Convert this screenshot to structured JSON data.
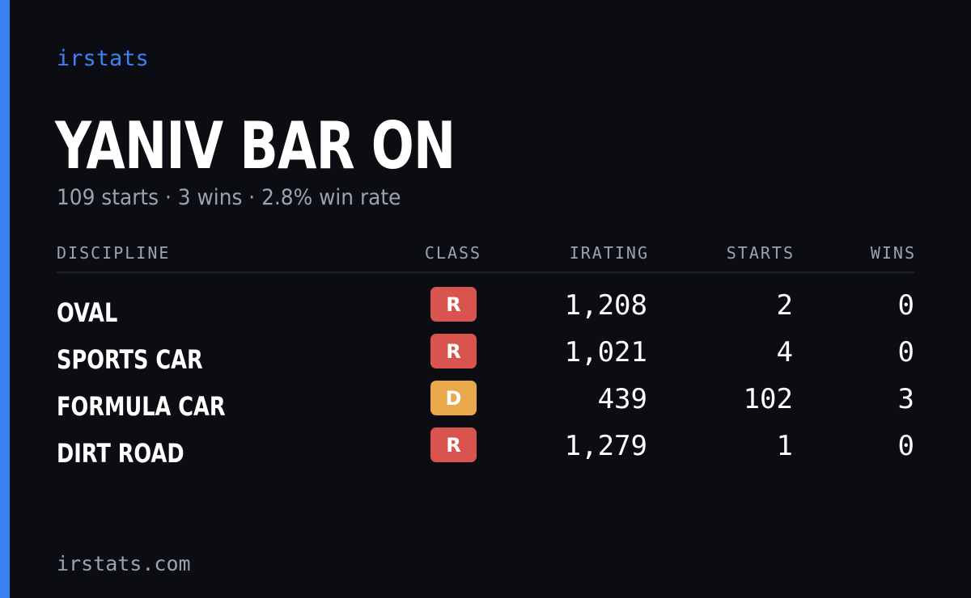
{
  "brand": "irstats",
  "driver": {
    "name": "YANIV BAR ON",
    "summary": "109 starts · 3 wins · 2.8% win rate"
  },
  "table": {
    "headers": {
      "discipline": "DISCIPLINE",
      "class": "CLASS",
      "irating": "IRATING",
      "starts": "STARTS",
      "wins": "WINS"
    },
    "rows": [
      {
        "discipline": "OVAL",
        "class": "R",
        "class_color": "#d9534f",
        "irating": "1,208",
        "starts": "2",
        "wins": "0"
      },
      {
        "discipline": "SPORTS CAR",
        "class": "R",
        "class_color": "#d9534f",
        "irating": "1,021",
        "starts": "4",
        "wins": "0"
      },
      {
        "discipline": "FORMULA CAR",
        "class": "D",
        "class_color": "#e9a94a",
        "irating": "439",
        "starts": "102",
        "wins": "3"
      },
      {
        "discipline": "DIRT ROAD",
        "class": "R",
        "class_color": "#d9534f",
        "irating": "1,279",
        "starts": "1",
        "wins": "0"
      }
    ]
  },
  "footer": {
    "url": "irstats.com"
  },
  "colors": {
    "background": "#0b0d13",
    "accent": "#3b82f6",
    "muted_text": "#9aa3b2",
    "class_r": "#d9534f",
    "class_d": "#e9a94a"
  }
}
